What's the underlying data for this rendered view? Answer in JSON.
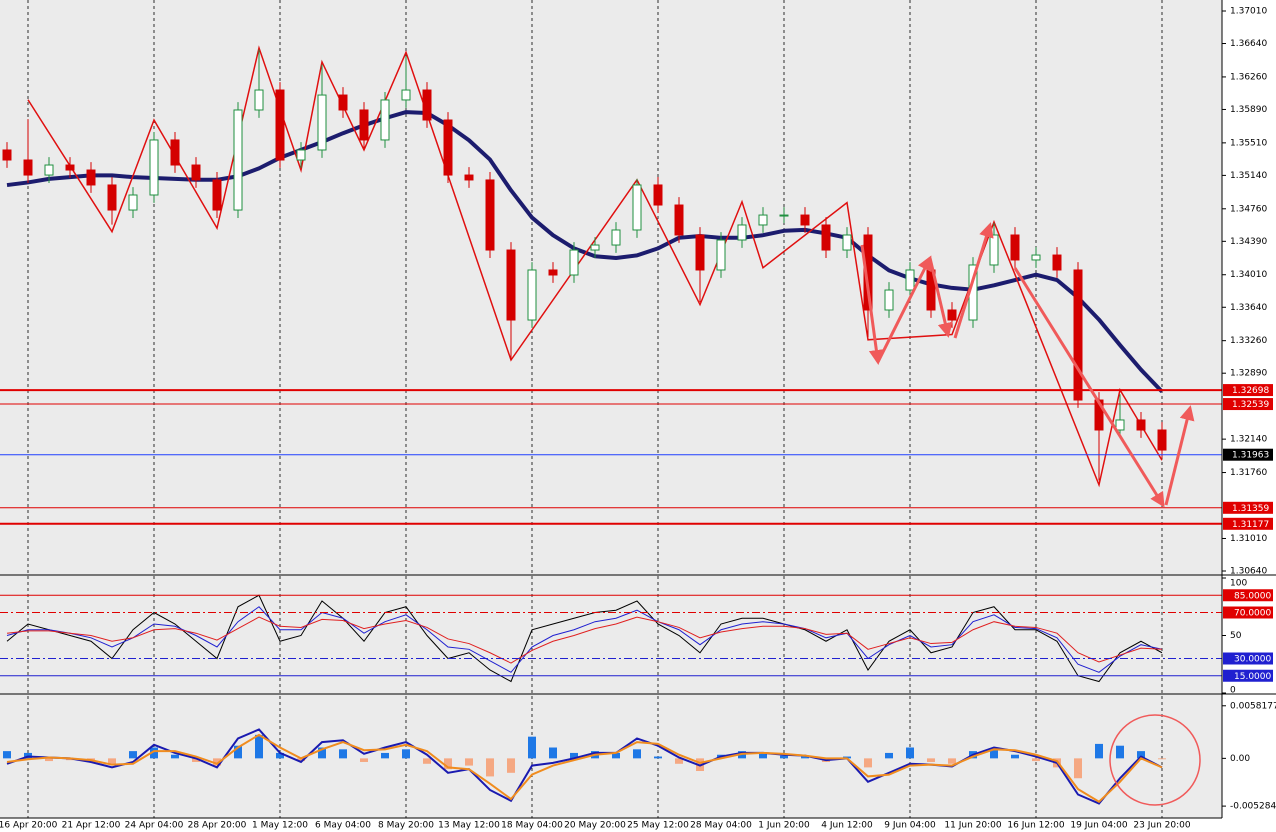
{
  "chart_data": [
    {
      "type": "candlestick",
      "categories": [
        null,
        "16 Apr 20:00",
        null,
        null,
        "21 Apr 12:00",
        null,
        null,
        "24 Apr 04:00",
        null,
        null,
        "28 Apr 20:00",
        null,
        null,
        "1 May 12:00",
        null,
        null,
        "6 May 04:00",
        null,
        null,
        "8 May 20:00",
        null,
        null,
        "13 May 12:00",
        null,
        null,
        "18 May 04:00",
        null,
        null,
        "20 May 20:00",
        null,
        null,
        "25 May 12:00",
        null,
        null,
        "28 May 04:00",
        null,
        null,
        "1 Jun 20:00",
        null,
        null,
        "4 Jun 12:00",
        null,
        null,
        "9 Jun 04:00",
        null,
        null,
        "11 Jun 20:00",
        null,
        null,
        "16 Jun 12:00",
        null,
        null,
        "19 Jun 04:00",
        null,
        null,
        "23 Jun 20:00"
      ],
      "open": [
        1.35429,
        1.35315,
        1.35144,
        1.35258,
        1.35201,
        1.35031,
        1.34746,
        1.34917,
        1.35543,
        1.35258,
        1.35088,
        1.34746,
        1.35884,
        1.36111,
        1.35315,
        1.35429,
        1.36054,
        1.35884,
        1.35543,
        1.35998,
        1.36111,
        1.3577,
        1.35144,
        1.35088,
        1.34291,
        1.33495,
        1.34064,
        1.34007,
        1.34291,
        1.34348,
        1.34519,
        1.35031,
        1.34803,
        1.34462,
        1.34064,
        1.34405,
        1.34576,
        1.34689,
        1.34689,
        1.34576,
        1.34291,
        1.34462,
        1.33609,
        1.33836,
        1.34064,
        1.33609,
        1.33495,
        1.34121,
        1.34462,
        1.34178,
        1.34234,
        1.34064,
        1.32585,
        1.32244,
        1.32358,
        1.32244
      ],
      "high": [
        1.35519,
        1.3578,
        1.35348,
        1.35348,
        1.35291,
        1.35121,
        1.35007,
        1.35633,
        1.35633,
        1.35348,
        1.35178,
        1.35974,
        1.3657,
        1.36201,
        1.35519,
        1.364,
        1.36144,
        1.35974,
        1.36088,
        1.365,
        1.36201,
        1.3586,
        1.35234,
        1.35178,
        1.34381,
        1.34154,
        1.34154,
        1.34381,
        1.34438,
        1.34609,
        1.351,
        1.35121,
        1.34893,
        1.34552,
        1.34495,
        1.34666,
        1.34779,
        1.34779,
        1.34779,
        1.34666,
        1.34552,
        1.34552,
        1.33926,
        1.34154,
        1.34154,
        1.33699,
        1.34211,
        1.346,
        1.34552,
        1.34324,
        1.34324,
        1.34154,
        1.32675,
        1.3265,
        1.32448,
        1.32334
      ],
      "low": [
        1.35225,
        1.35054,
        1.35054,
        1.35111,
        1.34941,
        1.3458,
        1.34656,
        1.34827,
        1.35168,
        1.34998,
        1.34656,
        1.34656,
        1.35794,
        1.35225,
        1.35225,
        1.35339,
        1.35794,
        1.35453,
        1.35453,
        1.35908,
        1.3568,
        1.35054,
        1.34998,
        1.34201,
        1.3304,
        1.33405,
        1.33917,
        1.33917,
        1.34201,
        1.34258,
        1.34429,
        1.34713,
        1.34372,
        1.337,
        1.33974,
        1.34315,
        1.34486,
        1.34599,
        1.34486,
        1.34201,
        1.34201,
        1.333,
        1.33519,
        1.33746,
        1.33519,
        1.33405,
        1.33405,
        1.34031,
        1.34088,
        1.34088,
        1.33974,
        1.32495,
        1.3167,
        1.32154,
        1.32154,
        1.31926
      ],
      "close": [
        1.35315,
        1.35144,
        1.35258,
        1.35201,
        1.35031,
        1.34746,
        1.34917,
        1.35543,
        1.35258,
        1.35088,
        1.34746,
        1.35884,
        1.36111,
        1.35315,
        1.35429,
        1.36054,
        1.35884,
        1.35543,
        1.35998,
        1.36111,
        1.3577,
        1.35144,
        1.35088,
        1.34291,
        1.33495,
        1.34064,
        1.34007,
        1.34291,
        1.34348,
        1.34519,
        1.35031,
        1.34803,
        1.34462,
        1.34064,
        1.34405,
        1.34576,
        1.34689,
        1.34689,
        1.34576,
        1.34291,
        1.34462,
        1.33609,
        1.33836,
        1.34064,
        1.33609,
        1.33495,
        1.34121,
        1.34462,
        1.34178,
        1.34234,
        1.34064,
        1.32585,
        1.32244,
        1.32358,
        1.32244,
        1.32016
      ],
      "up_color": "#1f8f3f",
      "down_color": "#d40000",
      "ma": [
        1.3503,
        1.3506,
        1.351,
        1.3512,
        1.3514,
        1.3514,
        1.3512,
        1.3511,
        1.351,
        1.3509,
        1.3509,
        1.3513,
        1.3522,
        1.3534,
        1.3543,
        1.3552,
        1.3562,
        1.3571,
        1.3579,
        1.3586,
        1.3585,
        1.3571,
        1.3554,
        1.3532,
        1.3497,
        1.3466,
        1.3446,
        1.3431,
        1.3422,
        1.342,
        1.3423,
        1.3431,
        1.3443,
        1.3445,
        1.3443,
        1.3443,
        1.3446,
        1.3451,
        1.3452,
        1.3448,
        1.3443,
        1.3423,
        1.3406,
        1.3397,
        1.339,
        1.3386,
        1.3384,
        1.3389,
        1.3395,
        1.3401,
        1.3395,
        1.3375,
        1.335,
        1.3321,
        1.3293,
        1.3268
      ],
      "ma_color": "#1c1c6e",
      "zigzag": {
        "x": [
          1,
          5,
          7,
          10,
          12,
          14,
          15,
          17,
          19,
          24,
          30,
          33,
          35,
          36,
          40,
          41,
          45,
          47,
          52,
          53,
          55
        ],
        "values": [
          1.36,
          1.345,
          1.3577,
          1.3454,
          1.3659,
          1.352,
          1.3643,
          1.3543,
          1.3654,
          1.3304,
          1.3509,
          1.3367,
          1.3484,
          1.3409,
          1.3483,
          1.3327,
          1.3333,
          1.3461,
          1.3162,
          1.327,
          1.319
        ],
        "color": "#e01010"
      },
      "levels": [
        {
          "value": 1.32698,
          "color": "#e00000",
          "width": 2,
          "label_bg": "#e00000"
        },
        {
          "value": 1.32539,
          "color": "#e00000",
          "width": 1,
          "label_bg": "#e00000"
        },
        {
          "value": 1.31963,
          "color": "#2040ff",
          "width": 1,
          "label_bg": "#000000"
        },
        {
          "value": 1.31359,
          "color": "#e00000",
          "width": 1,
          "label_bg": "#e00000"
        },
        {
          "value": 1.31177,
          "color": "#e00000",
          "width": 2,
          "label_bg": "#e00000"
        }
      ],
      "ylim": [
        1.30606,
        1.37135
      ],
      "yticks": [
        {
          "value": 1.3701,
          "label": "1.37010"
        },
        {
          "value": 1.3664,
          "label": "1.36640"
        },
        {
          "value": 1.3626,
          "label": "1.36260"
        },
        {
          "value": 1.3589,
          "label": "1.35890"
        },
        {
          "value": 1.3551,
          "label": "1.35510"
        },
        {
          "value": 1.3514,
          "label": "1.35140"
        },
        {
          "value": 1.3476,
          "label": "1.34760"
        },
        {
          "value": 1.3439,
          "label": "1.34390"
        },
        {
          "value": 1.3401,
          "label": "1.34010"
        },
        {
          "value": 1.3364,
          "label": "1.33640"
        },
        {
          "value": 1.3326,
          "label": "1.33260"
        },
        {
          "value": 1.3289,
          "label": "1.32890"
        },
        {
          "value": 1.3214,
          "label": "1.32140"
        },
        {
          "value": 1.3176,
          "label": "1.31760"
        },
        {
          "value": 1.3101,
          "label": "1.31010"
        },
        {
          "value": 1.3064,
          "label": "1.30640"
        }
      ]
    },
    {
      "type": "line",
      "series": [
        {
          "color": "#000000",
          "values": [
            45,
            60,
            55,
            50,
            45,
            30,
            55,
            70,
            60,
            45,
            30,
            75,
            85,
            45,
            50,
            80,
            65,
            45,
            70,
            75,
            50,
            30,
            35,
            20,
            10,
            55,
            60,
            65,
            70,
            72,
            80,
            60,
            50,
            35,
            60,
            65,
            65,
            60,
            55,
            45,
            55,
            20,
            45,
            55,
            35,
            40,
            70,
            75,
            55,
            55,
            45,
            15,
            10,
            35,
            45,
            35
          ]
        },
        {
          "color": "#2020d0",
          "values": [
            50,
            55,
            55,
            52,
            48,
            40,
            48,
            60,
            58,
            50,
            40,
            62,
            75,
            55,
            55,
            70,
            65,
            52,
            62,
            68,
            55,
            40,
            38,
            28,
            18,
            40,
            50,
            55,
            62,
            65,
            72,
            62,
            55,
            42,
            55,
            60,
            62,
            60,
            56,
            48,
            52,
            30,
            42,
            50,
            40,
            42,
            62,
            68,
            57,
            56,
            48,
            25,
            18,
            32,
            42,
            38
          ]
        },
        {
          "color": "#e02020",
          "values": [
            52,
            54,
            54,
            52,
            50,
            45,
            48,
            55,
            56,
            52,
            46,
            56,
            66,
            58,
            57,
            64,
            63,
            56,
            60,
            63,
            57,
            47,
            43,
            35,
            26,
            37,
            45,
            50,
            56,
            60,
            66,
            62,
            57,
            48,
            53,
            56,
            58,
            58,
            56,
            51,
            52,
            38,
            43,
            48,
            43,
            44,
            55,
            62,
            58,
            57,
            52,
            35,
            27,
            33,
            39,
            38
          ]
        }
      ],
      "levels": [
        {
          "value": 85,
          "label": "85.0000",
          "color": "#e00000",
          "dash": "",
          "label_bg": "#e00000"
        },
        {
          "value": 70,
          "label": "70.0000",
          "color": "#e00000",
          "dash": "8 3 2 3",
          "label_bg": "#e00000"
        },
        {
          "value": 30,
          "label": "30.0000",
          "color": "#2020d0",
          "dash": "8 3 2 3",
          "label_bg": "#2020d0"
        },
        {
          "value": 15,
          "label": "15.0000",
          "color": "#2020d0",
          "dash": "",
          "label_bg": "#2020d0"
        }
      ],
      "ylim": [
        0,
        100
      ],
      "yticks": [
        0,
        50,
        100
      ]
    },
    {
      "type": "macd",
      "histogram": [
        0.0008,
        0.0006,
        -0.0003,
        -0.0002,
        -0.0004,
        -0.0006,
        0.0008,
        0.0012,
        0.0004,
        -0.0004,
        -0.0008,
        0.0014,
        0.0026,
        0.0006,
        -0.0003,
        0.0012,
        0.001,
        -0.0004,
        0.0006,
        0.001,
        -0.0006,
        -0.0012,
        -0.0008,
        -0.002,
        -0.0016,
        0.0024,
        0.0012,
        0.0006,
        0.0008,
        0.0006,
        0.001,
        0.0002,
        -0.0006,
        -0.0014,
        0.0004,
        0.0008,
        0.0006,
        0.0003,
        0.0002,
        -0.0004,
        0.0002,
        -0.001,
        0.0006,
        0.0012,
        -0.0004,
        -0.0006,
        0.0008,
        0.001,
        0.0004,
        -0.0003,
        -0.001,
        -0.0022,
        0.0016,
        0.0014,
        0.0008,
        -0.0001
      ],
      "pos_color": "#1e78e6",
      "neg_color": "#f5a882",
      "series": [
        {
          "color": "#1a1ab0",
          "values": [
            -0.0006,
            0.0002,
            0.0001,
            0,
            -0.0004,
            -0.001,
            -0.0004,
            0.0015,
            0.0006,
            0,
            -0.001,
            0.0022,
            0.0032,
            0.0006,
            -0.0004,
            0.0018,
            0.002,
            0.0005,
            0.0012,
            0.0018,
            0.0004,
            -0.0016,
            -0.0012,
            -0.0035,
            -0.0047,
            -0.0008,
            -0.0005,
            0,
            0.0006,
            0.0006,
            0.0022,
            0.0014,
            0.0001,
            -0.0008,
            0.0002,
            0.0006,
            0.0006,
            0.0004,
            0.0003,
            -0.0002,
            0,
            -0.0026,
            -0.0016,
            -0.0006,
            -0.0007,
            -0.0009,
            0.0004,
            0.0012,
            0.0008,
            0.0002,
            -0.0005,
            -0.004,
            -0.005,
            -0.0022,
            0.0002,
            -0.001
          ]
        },
        {
          "color": "#f08c1e",
          "values": [
            -0.0004,
            -0.0001,
            0.0001,
            0,
            -0.0002,
            -0.0007,
            -0.0006,
            0.0008,
            0.0008,
            0.0002,
            -0.0006,
            0.0012,
            0.0026,
            0.0012,
            0,
            0.001,
            0.0018,
            0.0009,
            0.001,
            0.0015,
            0.0008,
            -0.001,
            -0.0012,
            -0.0028,
            -0.0045,
            -0.0018,
            -0.0008,
            -0.0002,
            0.0004,
            0.0006,
            0.0018,
            0.0016,
            0.0004,
            -0.0005,
            0,
            0.0005,
            0.0006,
            0.0005,
            0.0003,
            0,
            0,
            -0.002,
            -0.0018,
            -0.0008,
            -0.0007,
            -0.0008,
            0.0002,
            0.001,
            0.0009,
            0.0004,
            -0.0003,
            -0.0034,
            -0.0048,
            -0.0026,
            0,
            -0.001
          ]
        }
      ],
      "ylim": [
        -0.0066,
        0.0069
      ],
      "yticks": [
        0.0058177,
        {
          "value": 0,
          "label": "0.00"
        },
        -0.005284
      ]
    }
  ]
}
